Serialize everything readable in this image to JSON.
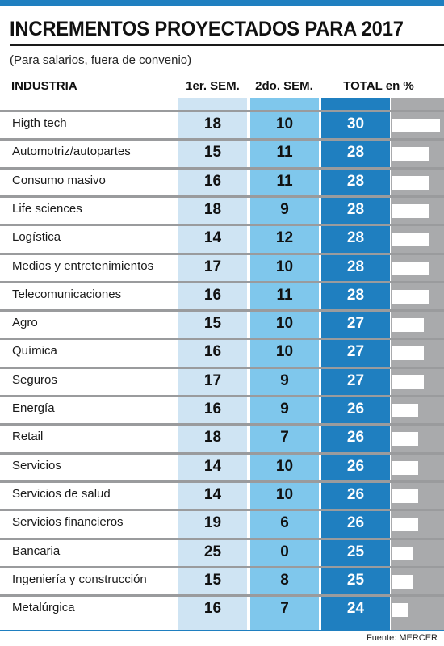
{
  "title": "INCREMENTOS PROYECTADOS PARA 2017",
  "subtitle": "(Para salarios, fuera de convenio)",
  "source": "Fuente: MERCER",
  "colors": {
    "accent": "#1f7fc0",
    "sem1_band": "#cfe4f3",
    "sem2_band": "#7fc7ec",
    "total_band": "#1f7fc0",
    "bar_track": "#a9aaac",
    "bar_fill": "#ffffff"
  },
  "headers": {
    "industry": "INDUSTRIA",
    "sem1": "1er. SEM.",
    "sem2": "2do. SEM.",
    "total": "TOTAL en %"
  },
  "chart_data": {
    "type": "table",
    "title": "INCREMENTOS PROYECTADOS PARA 2017",
    "subtitle": "(Para salarios, fuera de convenio)",
    "columns": [
      "INDUSTRIA",
      "1er. SEM.",
      "2do. SEM.",
      "TOTAL en %"
    ],
    "bar_scale_max": 30,
    "rows": [
      {
        "industry": "Higth tech",
        "sem1": 18,
        "sem2": 10,
        "total": 30
      },
      {
        "industry": "Automotriz/autopartes",
        "sem1": 15,
        "sem2": 11,
        "total": 28
      },
      {
        "industry": "Consumo masivo",
        "sem1": 16,
        "sem2": 11,
        "total": 28
      },
      {
        "industry": "Life sciences",
        "sem1": 18,
        "sem2": 9,
        "total": 28
      },
      {
        "industry": "Logística",
        "sem1": 14,
        "sem2": 12,
        "total": 28
      },
      {
        "industry": "Medios y entretenimientos",
        "sem1": 17,
        "sem2": 10,
        "total": 28
      },
      {
        "industry": "Telecomunicaciones",
        "sem1": 16,
        "sem2": 11,
        "total": 28
      },
      {
        "industry": "Agro",
        "sem1": 15,
        "sem2": 10,
        "total": 27
      },
      {
        "industry": "Química",
        "sem1": 16,
        "sem2": 10,
        "total": 27
      },
      {
        "industry": "Seguros",
        "sem1": 17,
        "sem2": 9,
        "total": 27
      },
      {
        "industry": "Energía",
        "sem1": 16,
        "sem2": 9,
        "total": 26
      },
      {
        "industry": "Retail",
        "sem1": 18,
        "sem2": 7,
        "total": 26
      },
      {
        "industry": "Servicios",
        "sem1": 14,
        "sem2": 10,
        "total": 26
      },
      {
        "industry": "Servicios de salud",
        "sem1": 14,
        "sem2": 10,
        "total": 26
      },
      {
        "industry": "Servicios financieros",
        "sem1": 19,
        "sem2": 6,
        "total": 26
      },
      {
        "industry": "Bancaria",
        "sem1": 25,
        "sem2": 0,
        "total": 25
      },
      {
        "industry": "Ingeniería y construcción",
        "sem1": 15,
        "sem2": 8,
        "total": 25
      },
      {
        "industry": "Metalúrgica",
        "sem1": 16,
        "sem2": 7,
        "total": 24
      }
    ]
  }
}
